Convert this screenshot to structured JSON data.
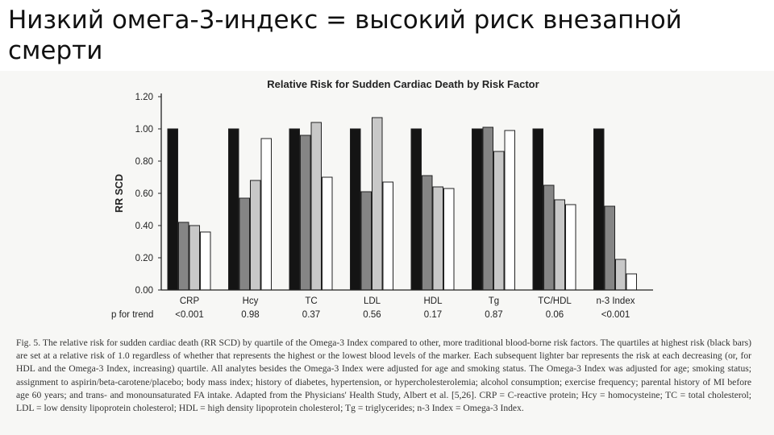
{
  "slide": {
    "title": "Низкий омега-3-индекс = высокий риск внезапной смерти"
  },
  "chart_data": {
    "type": "bar",
    "title": "Relative Risk for Sudden Cardiac Death by Risk Factor",
    "ylabel": "RR SCD",
    "xlabel": "",
    "ylim": [
      0,
      1.2
    ],
    "yticks": [
      "0.00",
      "0.20",
      "0.40",
      "0.60",
      "0.80",
      "1.00",
      "1.20"
    ],
    "categories": [
      "CRP",
      "Hcy",
      "TC",
      "LDL",
      "HDL",
      "Tg",
      "TC/HDL",
      "n-3 Index"
    ],
    "series": [
      {
        "values": [
          1.0,
          1.0,
          1.0,
          1.0,
          1.0,
          1.0,
          1.0,
          1.0
        ],
        "color": "#141414"
      },
      {
        "values": [
          0.42,
          0.57,
          0.96,
          0.61,
          0.71,
          1.01,
          0.65,
          0.52
        ],
        "color": "#858585"
      },
      {
        "values": [
          0.4,
          0.68,
          1.04,
          1.07,
          0.64,
          0.86,
          0.56,
          0.19
        ],
        "color": "#c8c8c8"
      },
      {
        "values": [
          0.36,
          0.94,
          0.7,
          0.67,
          0.63,
          0.99,
          0.53,
          0.1
        ],
        "color": "#ffffff"
      }
    ],
    "trend_label": "p for trend",
    "p_values": [
      "<0.001",
      "0.98",
      "0.37",
      "0.56",
      "0.17",
      "0.87",
      "0.06",
      "<0.001"
    ],
    "grid": false,
    "legend": "none"
  },
  "caption": {
    "text": "Fig. 5. The relative risk for sudden cardiac death (RR SCD) by quartile of the Omega-3 Index compared to other, more traditional blood-borne risk factors. The quartiles at highest risk (black bars) are set at a relative risk of 1.0 regardless of whether that represents the highest or the lowest blood levels of the marker. Each subsequent lighter bar represents the risk at each decreasing (or, for HDL and the Omega-3 Index, increasing) quartile. All analytes besides the Omega-3 Index were adjusted for age and smoking status. The Omega-3 Index was adjusted for age; smoking status; assignment to aspirin/beta-carotene/placebo; body mass index; history of diabetes, hypertension, or hypercholesterolemia; alcohol consumption; exercise frequency; parental history of MI before age 60 years; and trans- and monounsaturated FA intake. Adapted from the Physicians' Health Study, Albert et al. [5,26]. CRP = C-reactive protein; Hcy = homocysteine; TC = total cholesterol; LDL = low density lipoprotein cholesterol; HDL = high density lipoprotein cholesterol; Tg = triglycerides; n-3 Index = Omega-3 Index."
  }
}
